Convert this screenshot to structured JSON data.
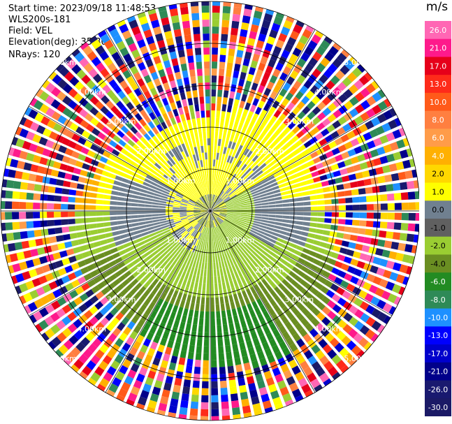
{
  "header": {
    "start_time": "Start time: 2023/09/18 11:48:53",
    "station": "WLS200s-181",
    "field": "Field: VEL",
    "elevation": "Elevation(deg): 35.30",
    "nrays": "NRays: 120"
  },
  "chart_data": {
    "type": "heatmap",
    "projection": "polar PPI",
    "field": "VEL",
    "units": "m/s",
    "n_rays": 120,
    "range_rings_km": [
      1.0,
      2.0,
      3.0,
      4.0,
      5.0
    ],
    "range_labels": [
      "1.00km",
      "2.00km",
      "3.00km",
      "4.00km",
      "5.00km"
    ],
    "colorbar": {
      "unit": "m/s",
      "ticks": [
        "26.0",
        "21.0",
        "17.0",
        "13.0",
        "10.0",
        "8.0",
        "6.0",
        "4.0",
        "2.0",
        "1.0",
        "0.0",
        "-1.0",
        "-2.0",
        "-4.0",
        "-6.0",
        "-8.0",
        "-10.0",
        "-13.0",
        "-17.0",
        "-21.0",
        "-26.0",
        "-30.0"
      ],
      "colors": [
        "#ff66b3",
        "#ff1a8c",
        "#e6001a",
        "#ff2b1a",
        "#ff5a1a",
        "#ff7f40",
        "#ff9c4a",
        "#ffb000",
        "#ffd800",
        "#ffff00",
        "#708090",
        "#606060",
        "#9acd32",
        "#6b8e23",
        "#228b22",
        "#2e8b57",
        "#1e90ff",
        "#0000ff",
        "#0000cd",
        "#00008b",
        "#191970",
        "#1a1a66"
      ]
    }
  }
}
